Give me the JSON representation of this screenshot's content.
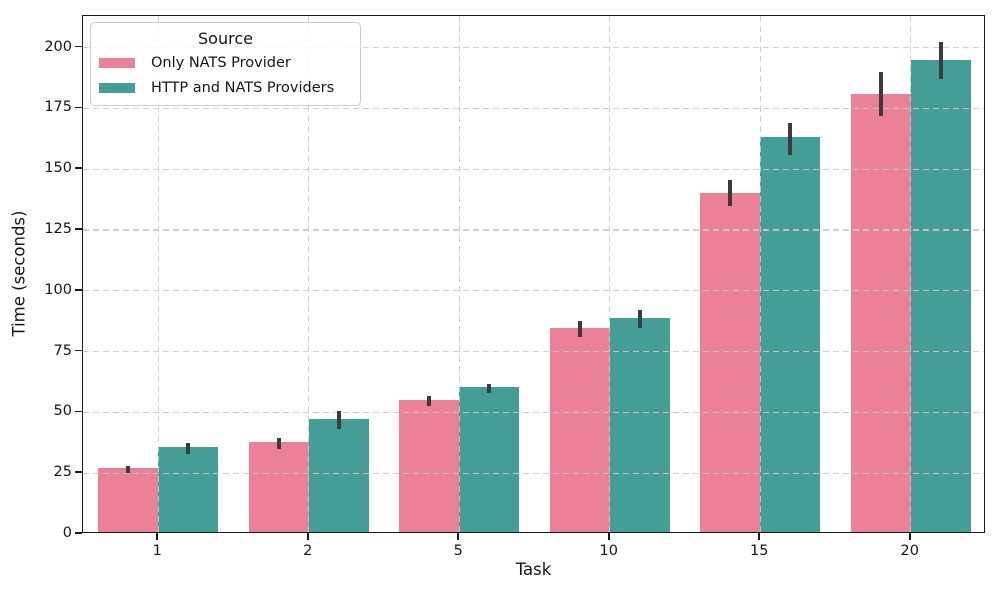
{
  "chart_data": {
    "type": "bar",
    "title": "",
    "xlabel": "Task",
    "ylabel": "Time (seconds)",
    "legend_title": "Source",
    "legend_position": "upper left",
    "categories": [
      "1",
      "2",
      "5",
      "10",
      "15",
      "20"
    ],
    "series": [
      {
        "name": "Only NATS Provider",
        "color": "#ea8196",
        "values": [
          26.5,
          37.3,
          54.7,
          84.4,
          140,
          181
        ],
        "ci_low": [
          25.2,
          35.0,
          52.7,
          81.2,
          135,
          172
        ],
        "ci_high": [
          28.0,
          39.5,
          56.8,
          87.4,
          145.5,
          190
        ]
      },
      {
        "name": "HTTP and NATS Providers",
        "color": "#459e96",
        "values": [
          35.2,
          46.8,
          60.0,
          88.5,
          163,
          195
        ],
        "ci_low": [
          33.0,
          43.1,
          58.1,
          84.9,
          156,
          187
        ],
        "ci_high": [
          37.5,
          50.6,
          61.6,
          92.2,
          169,
          202.5
        ]
      }
    ],
    "ylim": [
      0,
      213
    ],
    "yticks": [
      0,
      25,
      50,
      75,
      100,
      125,
      150,
      175,
      200
    ],
    "grid": true,
    "grid_style": "dashed",
    "error_bar_color": "#3b3b3b",
    "background": "#ffffff"
  }
}
